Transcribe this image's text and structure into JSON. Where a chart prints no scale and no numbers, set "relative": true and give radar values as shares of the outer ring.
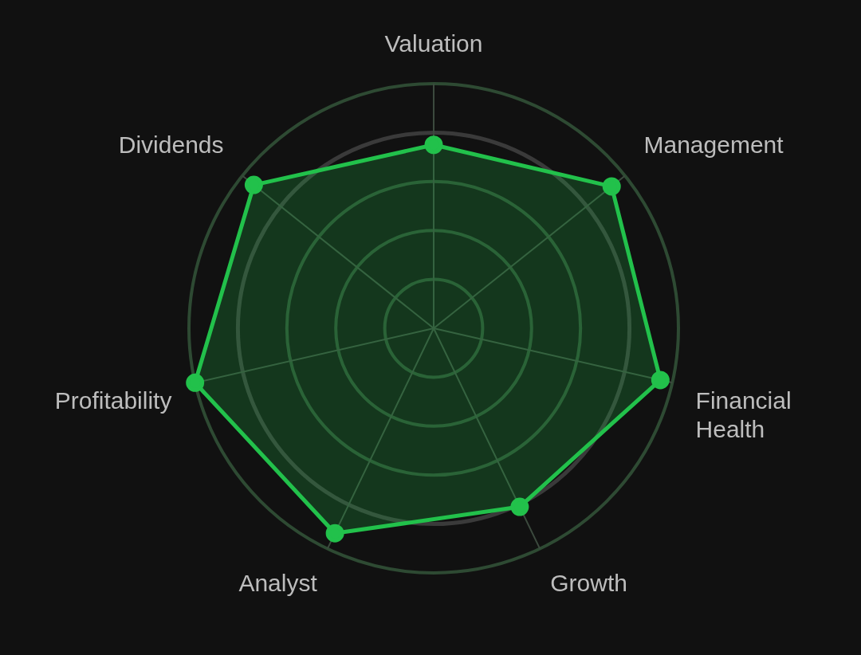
{
  "chart_data": {
    "type": "radar",
    "relative": true,
    "grid": true,
    "legend": false,
    "marker": "circle",
    "categories": [
      "Valuation",
      "Management",
      "Financial Health",
      "Growth",
      "Analyst",
      "Profitability",
      "Dividends"
    ],
    "series": [
      {
        "color": "#22c14b",
        "values": [
          0.75,
          0.93,
          0.95,
          0.81,
          0.93,
          1.0,
          0.94
        ]
      }
    ]
  }
}
